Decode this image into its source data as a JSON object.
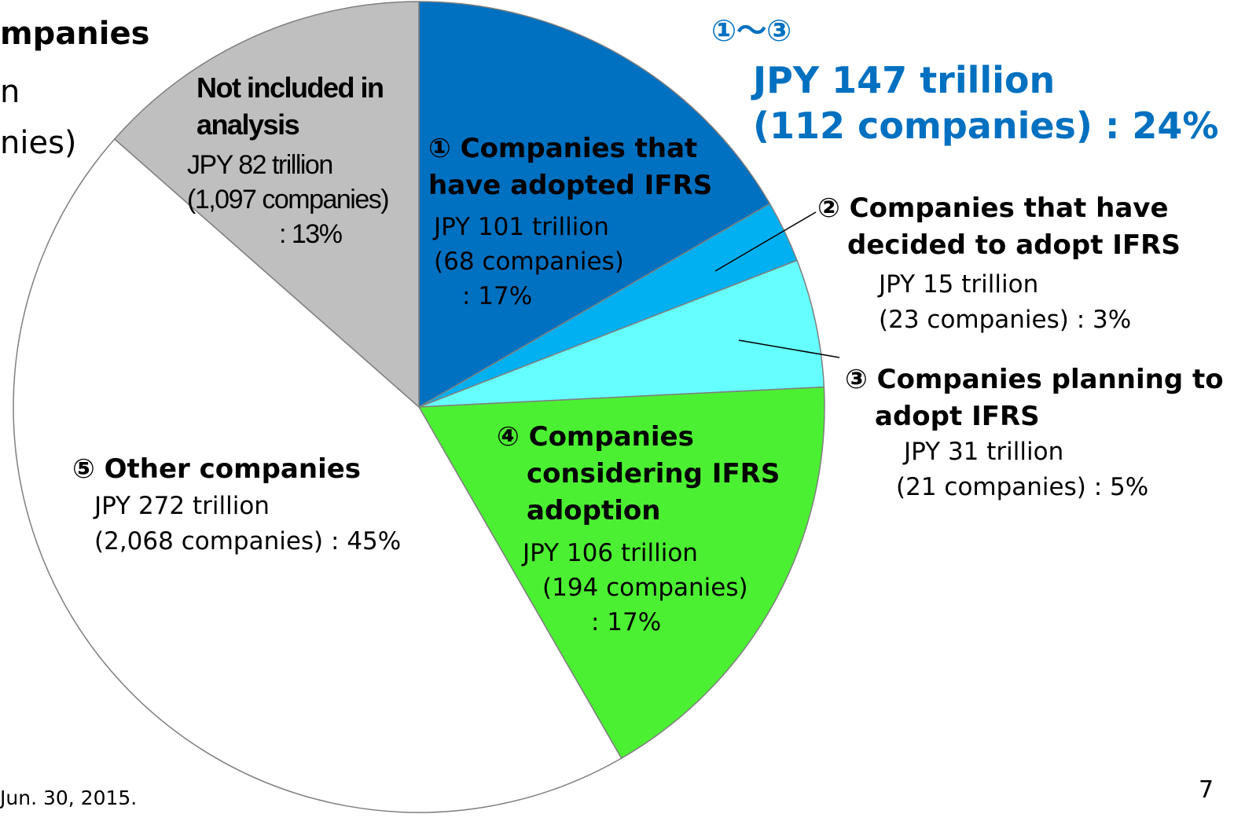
{
  "chart_data": {
    "type": "pie",
    "categories": [
      "① Companies that have adopted IFRS",
      "② Companies that have decided to adopt IFRS",
      "③ Companies planning to adopt IFRS",
      "④ Companies considering IFRS adoption",
      "⑤ Other companies",
      "Not included in analysis"
    ],
    "values": [
      101,
      15,
      31,
      106,
      272,
      82
    ],
    "value_labels": [
      "JPY 101 trillion",
      "JPY 15 trillion",
      "JPY 31 trillion",
      "JPY 106 trillion",
      "JPY 272 trillion",
      "JPY 82 trillion"
    ],
    "companies": [
      "(68 companies)",
      "(23 companies)",
      "(21 companies)",
      "(194 companies)",
      "(2,068 companies)",
      "(1,097 companies)"
    ],
    "shares": [
      17,
      3,
      5,
      17,
      45,
      13
    ],
    "share_labels": [
      ": 17%",
      ": 3%",
      ": 5%",
      ": 17%",
      ": 45%",
      ": 13%"
    ],
    "colors": [
      "#0070c0",
      "#00b0f0",
      "#66ffff",
      "#4cf032",
      "#ffffff",
      "#bfbfbf"
    ],
    "annotation": {
      "label": "①～③",
      "value": 147,
      "value_label": "JPY 147 trillion",
      "companies": "(112 companies) : 24%"
    },
    "fragments": [
      "mpanies",
      "n",
      "nies)"
    ],
    "footnote": "Jun. 30, 2015.",
    "page_number": "7"
  }
}
